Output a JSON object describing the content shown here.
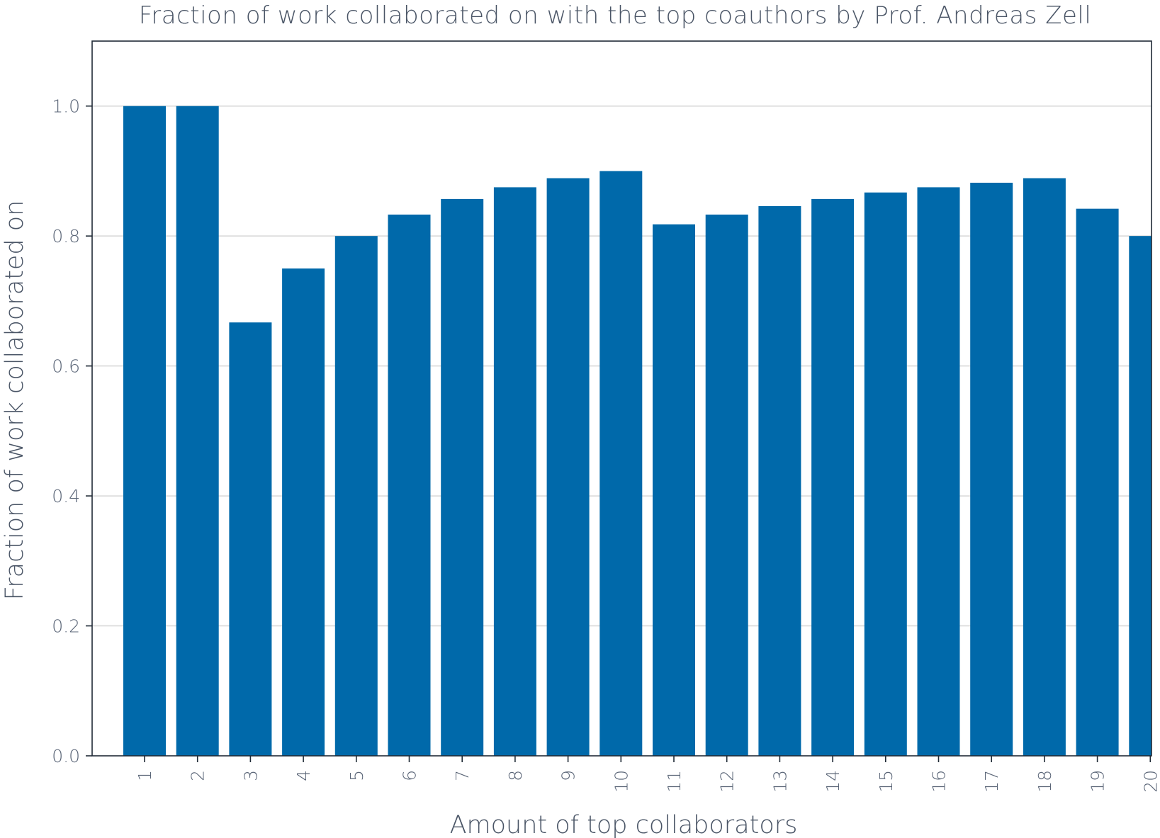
{
  "chart_data": {
    "type": "bar",
    "title": "Fraction of work collaborated on with the top coauthors by Prof. Andreas Zell",
    "xlabel": "Amount of top collaborators",
    "ylabel": "Fraction of work collaborated on",
    "categories": [
      "1",
      "2",
      "3",
      "4",
      "5",
      "6",
      "7",
      "8",
      "9",
      "10",
      "11",
      "12",
      "13",
      "14",
      "15",
      "16",
      "17",
      "18",
      "19",
      "20"
    ],
    "values": [
      1.0,
      1.0,
      0.667,
      0.75,
      0.8,
      0.833,
      0.857,
      0.875,
      0.889,
      0.9,
      0.818,
      0.833,
      0.846,
      0.857,
      0.867,
      0.875,
      0.882,
      0.889,
      0.842,
      0.8
    ],
    "ylim": [
      0,
      1.1
    ],
    "yticks": [
      0.0,
      0.2,
      0.4,
      0.6,
      0.8,
      1.0
    ],
    "ytick_labels": [
      "0.0",
      "0.2",
      "0.4",
      "0.6",
      "0.8",
      "1.0"
    ],
    "grid": "horizontal",
    "colors": {
      "bar": "#0069aa",
      "grid": "#d6d6d6",
      "axis": "#1f2a36",
      "text": "#4a5566"
    }
  }
}
